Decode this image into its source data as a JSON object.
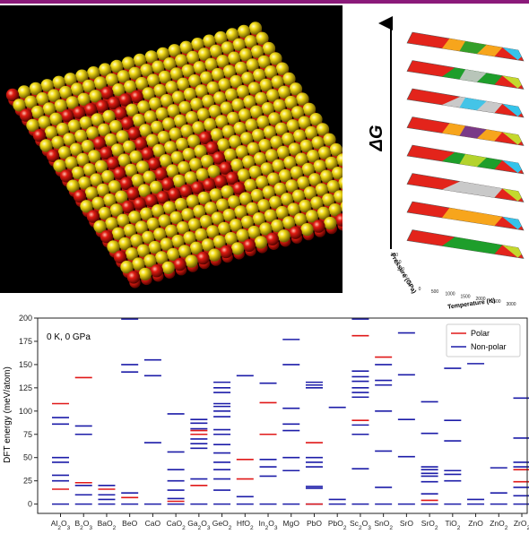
{
  "figure": {
    "accent_color": "#8b1a7a",
    "render_colors": {
      "background": "#000000",
      "yellow_atom": "#f2dc18",
      "red_atom": "#e01c12"
    },
    "phase_diagram": {
      "axis_symbol": "ΔG",
      "xlabel": "Temperature (K)",
      "ylabel": "Pressure (GPa)",
      "x_ticks": [
        "0",
        "500",
        "1000",
        "1500",
        "2000",
        "2500",
        "3000"
      ],
      "y_ticks": [
        "0",
        "50",
        "100",
        "150",
        "200"
      ],
      "layer_palette": [
        "#e3241b",
        "#f7a51c",
        "#1e9e2b",
        "#c9c9c9",
        "#35c3ea",
        "#6b2f93",
        "#c4d82d"
      ]
    }
  },
  "chart_data": {
    "type": "line",
    "subtype": "energy-level diagram",
    "annotation": "0 K, 0 GPa",
    "xlabel": "",
    "ylabel": "DFT energy (meV/atom)",
    "ylim": [
      -10,
      200
    ],
    "yticks": [
      0,
      25,
      50,
      75,
      100,
      125,
      150,
      175,
      200
    ],
    "grid": false,
    "legend_position": "top-right",
    "categories": [
      "Al2O3",
      "B2O3",
      "BaO2",
      "BeO",
      "CaO",
      "CaO2",
      "Ga2O3",
      "GeO2",
      "HfO2",
      "In2O3",
      "MgO",
      "PbO",
      "PbO2",
      "Sc2O3",
      "SnO2",
      "SrO",
      "SrO2",
      "TiO2",
      "ZnO",
      "ZnO2",
      "ZrO2"
    ],
    "series": [
      {
        "name": "Polar",
        "color": "#e01818",
        "values": [
          [
            16,
            108
          ],
          [
            23,
            136
          ],
          [
            16
          ],
          [
            7
          ],
          [],
          [
            3
          ],
          [
            20,
            75,
            79
          ],
          [],
          [
            27,
            48
          ],
          [
            75,
            109
          ],
          [],
          [
            0,
            66
          ],
          [],
          [
            90,
            181
          ],
          [
            158
          ],
          [],
          [
            4
          ],
          [],
          [],
          [],
          [
            24,
            37
          ]
        ]
      },
      {
        "name": "Non-polar",
        "color": "#1c1ca8",
        "values": [
          [
            0,
            25,
            31,
            45,
            50,
            86,
            93
          ],
          [
            0,
            10,
            20,
            75,
            84
          ],
          [
            0,
            5,
            10,
            20
          ],
          [
            0,
            12,
            142,
            150,
            199
          ],
          [
            0,
            66,
            138,
            155
          ],
          [
            0,
            6,
            15,
            25,
            37,
            56,
            97
          ],
          [
            0,
            27,
            60,
            65,
            70,
            81,
            87,
            91
          ],
          [
            0,
            15,
            27,
            37,
            45,
            55,
            64,
            75,
            80,
            94,
            100,
            105,
            108,
            120,
            125,
            131
          ],
          [
            0,
            8,
            138
          ],
          [
            0,
            30,
            40,
            48,
            130
          ],
          [
            0,
            36,
            50,
            79,
            86,
            103,
            150,
            177
          ],
          [
            0,
            17,
            19,
            40,
            45,
            50,
            125,
            128,
            131
          ],
          [
            0,
            5,
            104
          ],
          [
            0,
            38,
            75,
            85,
            115,
            120,
            125,
            132,
            137,
            143,
            199
          ],
          [
            0,
            18,
            57,
            100,
            128,
            133,
            150
          ],
          [
            0,
            51,
            91,
            139,
            184
          ],
          [
            0,
            11,
            24,
            30,
            33,
            37,
            40,
            76,
            110
          ],
          [
            0,
            25,
            32,
            36,
            68,
            90,
            146
          ],
          [
            0,
            5,
            151
          ],
          [
            0,
            12,
            39
          ],
          [
            0,
            9,
            18,
            40,
            45,
            71,
            114
          ]
        ]
      }
    ]
  }
}
